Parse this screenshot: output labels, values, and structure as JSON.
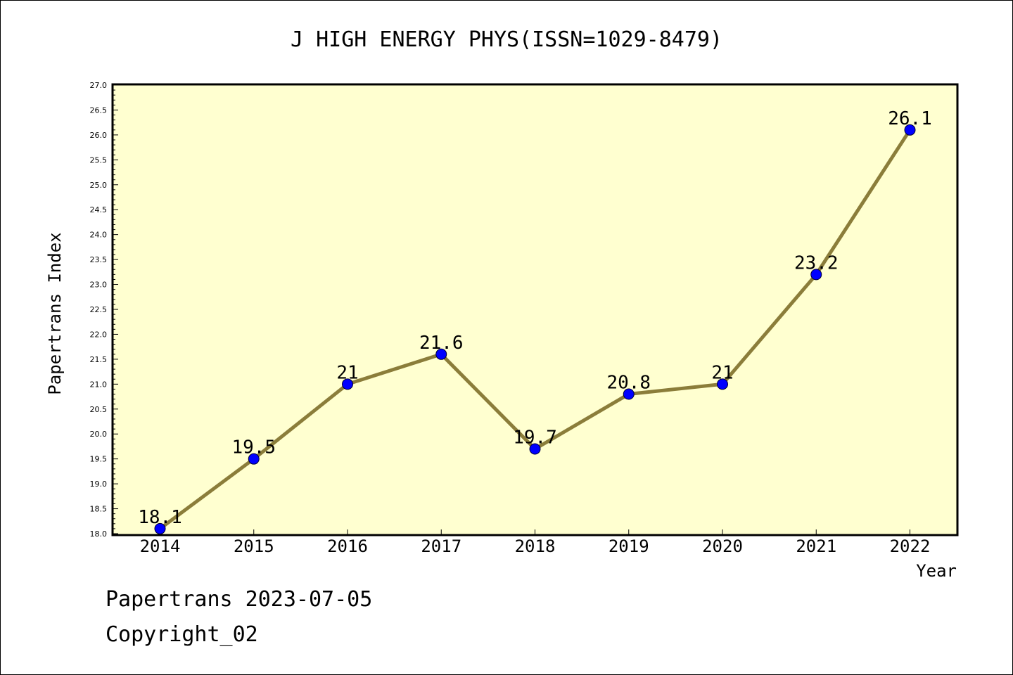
{
  "chart_data": {
    "type": "line",
    "title": "J HIGH ENERGY PHYS(ISSN=1029-8479)",
    "xlabel": "Year",
    "ylabel": "Papertrans Index",
    "categories": [
      "2014",
      "2015",
      "2016",
      "2017",
      "2018",
      "2019",
      "2020",
      "2021",
      "2022"
    ],
    "values": [
      18.1,
      19.5,
      21,
      21.6,
      19.7,
      20.8,
      21,
      23.2,
      26.1
    ],
    "data_labels": [
      "18.1",
      "19.5",
      "21",
      "21.6",
      "19.7",
      "20.8",
      "21",
      "23.2",
      "26.1"
    ],
    "ylim": [
      18.0,
      27.0
    ],
    "y_tick_labels": [
      "18.0",
      "18.5",
      "19.0",
      "19.5",
      "20.0",
      "20.5",
      "21.0",
      "21.5",
      "22.0",
      "22.5",
      "23.0",
      "23.5",
      "24.0",
      "24.5",
      "25.0",
      "25.5",
      "26.0",
      "26.5",
      "27.0"
    ],
    "grid": false,
    "colors": {
      "plot_background": "#ffffd0",
      "line": "#8b7d3a",
      "marker": "#0000ff"
    }
  },
  "footer": {
    "line1": "Papertrans 2023-07-05",
    "line2": "Copyright_02"
  }
}
